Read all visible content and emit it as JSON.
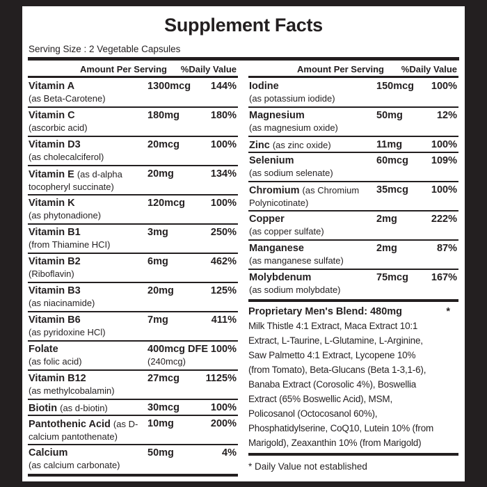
{
  "title": "Supplement Facts",
  "serving_size": "Serving Size : 2 Vegetable Capsules",
  "header": {
    "amount": "Amount Per Serving",
    "daily_value": "%Daily Value"
  },
  "left_rows": [
    {
      "name": "Vitamin A",
      "detail": "(as Beta-Carotene)",
      "amount": "1300mcg",
      "dv": "144%"
    },
    {
      "name": "Vitamin C",
      "detail": "(ascorbic acid)",
      "amount": "180mg",
      "dv": "180%"
    },
    {
      "name": "Vitamin D3",
      "detail": "(as cholecalciferol)",
      "amount": "20mcg",
      "dv": "100%"
    },
    {
      "name": "Vitamin E",
      "detail": "(as d-alpha tocopheryl succinate)",
      "inline": true,
      "amount": "20mg",
      "dv": "134%"
    },
    {
      "name": "Vitamin K",
      "detail": "(as phytonadione)",
      "amount": "120mcg",
      "dv": "100%"
    },
    {
      "name": "Vitamin B1",
      "detail": "(from Thiamine HCI)",
      "amount": "3mg",
      "dv": "250%"
    },
    {
      "name": "Vitamin B2",
      "detail": "(Riboflavin)",
      "amount": "6mg",
      "dv": "462%"
    },
    {
      "name": "Vitamin B3",
      "detail": "(as niacinamide)",
      "amount": "20mg",
      "dv": "125%"
    },
    {
      "name": "Vitamin B6",
      "detail": "(as pyridoxine HCl)",
      "amount": "7mg",
      "dv": "411%"
    },
    {
      "name": "Folate",
      "detail": "(as folic acid)",
      "amount": "400mcg DFE",
      "amount_detail": "(240mcg)",
      "dv": "100%"
    },
    {
      "name": "Vitamin B12",
      "detail": "(as methylcobalamin)",
      "amount": "27mcg",
      "dv": "1125%"
    },
    {
      "name": "Biotin",
      "detail": "(as d-biotin)",
      "inline": true,
      "single": true,
      "amount": "30mcg",
      "dv": "100%"
    },
    {
      "name": "Pantothenic Acid",
      "detail": "(as D-calcium pantothenate)",
      "inline": true,
      "amount": "10mg",
      "dv": "200%"
    },
    {
      "name": "Calcium",
      "detail": "(as calcium carbonate)",
      "amount": "50mg",
      "dv": "4%"
    }
  ],
  "right_rows": [
    {
      "name": "Iodine",
      "detail": "(as potassium iodide)",
      "amount": "150mcg",
      "dv": "100%"
    },
    {
      "name": "Magnesium",
      "detail": "(as magnesium oxide)",
      "amount": "50mg",
      "dv": "12%"
    },
    {
      "name": "Zinc",
      "detail": "(as zinc oxide)",
      "inline": true,
      "single": true,
      "amount": "11mg",
      "dv": "100%"
    },
    {
      "name": "Selenium",
      "detail": "(as sodium selenate)",
      "amount": "60mcg",
      "dv": "109%"
    },
    {
      "name": "Chromium",
      "detail": "(as Chromium Polynicotinate)",
      "inline": true,
      "amount": "35mcg",
      "dv": "100%"
    },
    {
      "name": "Copper",
      "detail": "(as copper sulfate)",
      "amount": "2mg",
      "dv": "222%"
    },
    {
      "name": "Manganese",
      "detail": "(as manganese sulfate)",
      "amount": "2mg",
      "dv": "87%"
    },
    {
      "name": "Molybdenum",
      "detail": "(as sodium molybdate)",
      "amount": "75mcg",
      "dv": "167%"
    }
  ],
  "blend": {
    "title": "Proprietary Men's Blend: 480mg",
    "star": "*",
    "lines": [
      "Milk Thistle 4:1 Extract, Maca Extract 10:1",
      "Extract, L-Taurine, L-Glutamine, L-Arginine,",
      "Saw Palmetto 4:1 Extract, Lycopene 10%",
      "(from Tomato), Beta-Glucans (Beta 1-3,1-6),",
      "Banaba Extract (Corosolic 4%), Boswellia",
      "Extract (65% Boswellic Acid), MSM,",
      "Policosanol (Octocosanol 60%),",
      "Phosphatidylserine, CoQ10, Lutein 10% (from",
      "Marigold), Zeaxanthin 10% (from Marigold)"
    ]
  },
  "footnote": "* Daily Value not established"
}
